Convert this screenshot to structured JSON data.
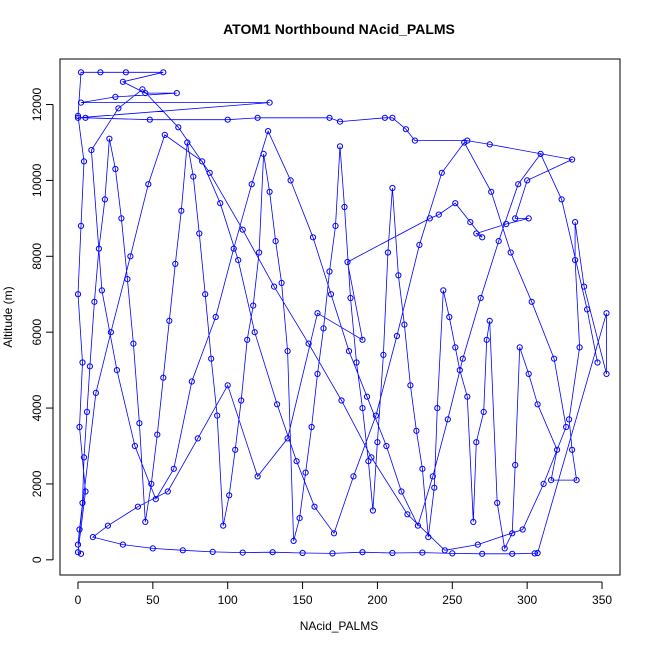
{
  "chart_data": {
    "type": "scatter",
    "title": "ATOM1 Northbound NAcid_PALMS",
    "xlabel": "NAcid_PALMS",
    "ylabel": "Altitude (m)",
    "xlim": [
      -12,
      362
    ],
    "ylim": [
      -400,
      13200
    ],
    "x_ticks": [
      0,
      50,
      100,
      150,
      200,
      250,
      300,
      350
    ],
    "y_ticks": [
      0,
      2000,
      4000,
      6000,
      8000,
      10000,
      12000
    ],
    "x_tick_labels": [
      "0",
      "50",
      "100",
      "150",
      "200",
      "250",
      "300",
      "350"
    ],
    "y_tick_labels": [
      "0",
      "2000",
      "4000",
      "6000",
      "8000",
      "10000",
      "12000"
    ],
    "grid": false,
    "legend": "none",
    "series": [
      {
        "color": "#0000ff",
        "marker": "open-circle",
        "line": true,
        "points": [
          [
            2,
            160
          ],
          [
            0,
            200
          ],
          [
            5,
            1800
          ],
          [
            1,
            3500
          ],
          [
            3,
            5200
          ],
          [
            0,
            7000
          ],
          [
            2,
            8800
          ],
          [
            4,
            10500
          ],
          [
            0,
            11700
          ],
          [
            2,
            12850
          ],
          [
            15,
            12850
          ],
          [
            32,
            12850
          ],
          [
            57,
            12850
          ],
          [
            30,
            12600
          ],
          [
            45,
            12300
          ],
          [
            66,
            12300
          ],
          [
            25,
            12200
          ],
          [
            2,
            12050
          ],
          [
            128,
            12050
          ],
          [
            0,
            11650
          ],
          [
            5,
            11650
          ],
          [
            48,
            11600
          ],
          [
            100,
            11600
          ],
          [
            120,
            11650
          ],
          [
            168,
            11650
          ],
          [
            175,
            11550
          ],
          [
            205,
            11650
          ],
          [
            210,
            11650
          ],
          [
            219,
            11350
          ],
          [
            225,
            11050
          ],
          [
            260,
            11050
          ],
          [
            275,
            10950
          ],
          [
            330,
            10550
          ],
          [
            300,
            10000
          ],
          [
            292,
            9000
          ],
          [
            301,
            9000
          ],
          [
            286,
            8850
          ],
          [
            266,
            8600
          ],
          [
            270,
            8500
          ],
          [
            262,
            8900
          ],
          [
            252,
            9400
          ],
          [
            241,
            9100
          ],
          [
            235,
            9000
          ],
          [
            180,
            7850
          ],
          [
            190,
            5800
          ],
          [
            160,
            6500
          ],
          [
            140,
            3200
          ],
          [
            120,
            2200
          ],
          [
            100,
            4600
          ],
          [
            80,
            3200
          ],
          [
            60,
            1800
          ],
          [
            40,
            1400
          ],
          [
            20,
            900
          ],
          [
            10,
            600
          ],
          [
            30,
            400
          ],
          [
            50,
            300
          ],
          [
            70,
            250
          ],
          [
            90,
            210
          ],
          [
            110,
            190
          ],
          [
            130,
            200
          ],
          [
            150,
            180
          ],
          [
            170,
            170
          ],
          [
            190,
            200
          ],
          [
            210,
            180
          ],
          [
            230,
            190
          ],
          [
            250,
            170
          ],
          [
            270,
            160
          ],
          [
            290,
            160
          ],
          [
            305,
            170
          ],
          [
            307,
            180
          ],
          [
            353,
            6500
          ],
          [
            353,
            4900
          ],
          [
            338,
            7200
          ],
          [
            332,
            8900
          ],
          [
            332,
            7900
          ],
          [
            335,
            5600
          ],
          [
            328,
            3700
          ],
          [
            330,
            2900
          ],
          [
            333,
            2100
          ],
          [
            316,
            2100
          ],
          [
            320,
            2900
          ],
          [
            307,
            4100
          ],
          [
            301,
            4900
          ],
          [
            295,
            5600
          ],
          [
            292,
            2500
          ],
          [
            290,
            700
          ],
          [
            285,
            300
          ],
          [
            280,
            1500
          ],
          [
            275,
            6300
          ],
          [
            273,
            5800
          ],
          [
            271,
            3900
          ],
          [
            266,
            3100
          ],
          [
            264,
            1000
          ],
          [
            260,
            4300
          ],
          [
            255,
            5000
          ],
          [
            252,
            5600
          ],
          [
            248,
            6400
          ],
          [
            244,
            7100
          ],
          [
            240,
            4000
          ],
          [
            238,
            1900
          ],
          [
            234,
            600
          ],
          [
            230,
            2400
          ],
          [
            226,
            3400
          ],
          [
            222,
            4600
          ],
          [
            218,
            6200
          ],
          [
            214,
            7500
          ],
          [
            210,
            9800
          ],
          [
            207,
            8100
          ],
          [
            204,
            5400
          ],
          [
            200,
            3100
          ],
          [
            197,
            1300
          ],
          [
            194,
            2600
          ],
          [
            190,
            4000
          ],
          [
            186,
            5200
          ],
          [
            182,
            6900
          ],
          [
            178,
            9300
          ],
          [
            175,
            10900
          ],
          [
            172,
            8800
          ],
          [
            168,
            7600
          ],
          [
            164,
            6100
          ],
          [
            160,
            4900
          ],
          [
            156,
            3500
          ],
          [
            152,
            2300
          ],
          [
            148,
            1100
          ],
          [
            144,
            500
          ],
          [
            140,
            5500
          ],
          [
            136,
            7300
          ],
          [
            132,
            8400
          ],
          [
            128,
            9700
          ],
          [
            124,
            10700
          ],
          [
            121,
            8100
          ],
          [
            117,
            6700
          ],
          [
            113,
            5800
          ],
          [
            109,
            4200
          ],
          [
            105,
            2900
          ],
          [
            101,
            1700
          ],
          [
            97,
            900
          ],
          [
            93,
            3800
          ],
          [
            89,
            5300
          ],
          [
            85,
            7000
          ],
          [
            81,
            8600
          ],
          [
            77,
            10100
          ],
          [
            73,
            11000
          ],
          [
            69,
            9200
          ],
          [
            65,
            7800
          ],
          [
            61,
            6300
          ],
          [
            57,
            4800
          ],
          [
            53,
            3300
          ],
          [
            49,
            2000
          ],
          [
            45,
            1000
          ],
          [
            41,
            3600
          ],
          [
            37,
            5700
          ],
          [
            33,
            7400
          ],
          [
            29,
            9000
          ],
          [
            25,
            10300
          ],
          [
            21,
            11100
          ],
          [
            18,
            9500
          ],
          [
            14,
            8200
          ],
          [
            11,
            6800
          ],
          [
            8,
            5100
          ],
          [
            6,
            3900
          ],
          [
            4,
            2700
          ],
          [
            3,
            1500
          ],
          [
            1,
            800
          ],
          [
            0,
            400
          ],
          [
            12,
            4400
          ],
          [
            22,
            6000
          ],
          [
            35,
            8000
          ],
          [
            47,
            9900
          ],
          [
            58,
            11200
          ],
          [
            83,
            10500
          ],
          [
            95,
            9400
          ],
          [
            107,
            7900
          ],
          [
            118,
            6000
          ],
          [
            133,
            4100
          ],
          [
            146,
            2600
          ],
          [
            158,
            1400
          ],
          [
            171,
            700
          ],
          [
            184,
            2200
          ],
          [
            199,
            3800
          ],
          [
            213,
            5900
          ],
          [
            228,
            8300
          ],
          [
            243,
            10200
          ],
          [
            258,
            11000
          ],
          [
            276,
            9700
          ],
          [
            289,
            8100
          ],
          [
            303,
            6800
          ],
          [
            318,
            5300
          ],
          [
            326,
            3500
          ],
          [
            311,
            2000
          ],
          [
            297,
            800
          ],
          [
            267,
            400
          ],
          [
            245,
            250
          ],
          [
            220,
            1200
          ],
          [
            196,
            2700
          ],
          [
            176,
            4200
          ],
          [
            154,
            5700
          ],
          [
            131,
            7200
          ],
          [
            110,
            8700
          ],
          [
            88,
            10200
          ],
          [
            67,
            11400
          ],
          [
            43,
            12400
          ],
          [
            27,
            11900
          ],
          [
            9,
            10800
          ],
          [
            16,
            7100
          ],
          [
            26,
            5000
          ],
          [
            38,
            3000
          ],
          [
            52,
            1600
          ],
          [
            64,
            2400
          ],
          [
            76,
            4700
          ],
          [
            92,
            6400
          ],
          [
            104,
            8200
          ],
          [
            116,
            9900
          ],
          [
            127,
            11300
          ],
          [
            142,
            10000
          ],
          [
            157,
            8500
          ],
          [
            169,
            7000
          ],
          [
            181,
            5500
          ],
          [
            193,
            4300
          ],
          [
            206,
            3000
          ],
          [
            216,
            1800
          ],
          [
            227,
            900
          ],
          [
            237,
            2200
          ],
          [
            247,
            3700
          ],
          [
            257,
            5300
          ],
          [
            269,
            6900
          ],
          [
            281,
            8400
          ],
          [
            294,
            9900
          ],
          [
            309,
            10700
          ],
          [
            323,
            9500
          ],
          [
            340,
            6600
          ],
          [
            347,
            5200
          ]
        ]
      }
    ]
  }
}
